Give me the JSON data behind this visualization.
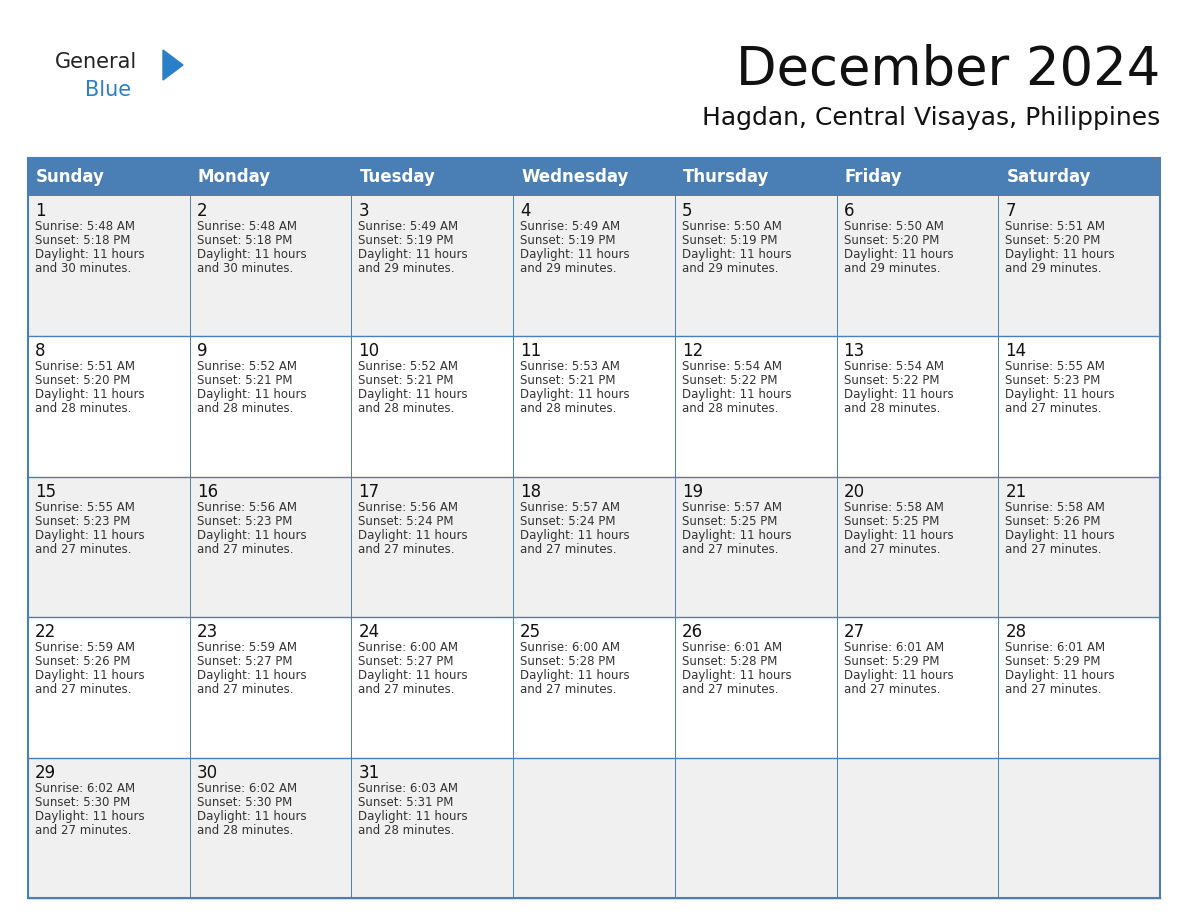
{
  "title": "December 2024",
  "subtitle": "Hagdan, Central Visayas, Philippines",
  "header_bg": "#4a7fb5",
  "header_text": "#ffffff",
  "cell_bg_odd": "#f0f0f0",
  "cell_bg_even": "#ffffff",
  "border_color": "#4a7fb5",
  "day_names": [
    "Sunday",
    "Monday",
    "Tuesday",
    "Wednesday",
    "Thursday",
    "Friday",
    "Saturday"
  ],
  "days": [
    {
      "day": 1,
      "col": 0,
      "row": 0,
      "sunrise": "5:48 AM",
      "sunset": "5:18 PM",
      "daylight": "11 hours and 30 minutes."
    },
    {
      "day": 2,
      "col": 1,
      "row": 0,
      "sunrise": "5:48 AM",
      "sunset": "5:18 PM",
      "daylight": "11 hours and 30 minutes."
    },
    {
      "day": 3,
      "col": 2,
      "row": 0,
      "sunrise": "5:49 AM",
      "sunset": "5:19 PM",
      "daylight": "11 hours and 29 minutes."
    },
    {
      "day": 4,
      "col": 3,
      "row": 0,
      "sunrise": "5:49 AM",
      "sunset": "5:19 PM",
      "daylight": "11 hours and 29 minutes."
    },
    {
      "day": 5,
      "col": 4,
      "row": 0,
      "sunrise": "5:50 AM",
      "sunset": "5:19 PM",
      "daylight": "11 hours and 29 minutes."
    },
    {
      "day": 6,
      "col": 5,
      "row": 0,
      "sunrise": "5:50 AM",
      "sunset": "5:20 PM",
      "daylight": "11 hours and 29 minutes."
    },
    {
      "day": 7,
      "col": 6,
      "row": 0,
      "sunrise": "5:51 AM",
      "sunset": "5:20 PM",
      "daylight": "11 hours and 29 minutes."
    },
    {
      "day": 8,
      "col": 0,
      "row": 1,
      "sunrise": "5:51 AM",
      "sunset": "5:20 PM",
      "daylight": "11 hours and 28 minutes."
    },
    {
      "day": 9,
      "col": 1,
      "row": 1,
      "sunrise": "5:52 AM",
      "sunset": "5:21 PM",
      "daylight": "11 hours and 28 minutes."
    },
    {
      "day": 10,
      "col": 2,
      "row": 1,
      "sunrise": "5:52 AM",
      "sunset": "5:21 PM",
      "daylight": "11 hours and 28 minutes."
    },
    {
      "day": 11,
      "col": 3,
      "row": 1,
      "sunrise": "5:53 AM",
      "sunset": "5:21 PM",
      "daylight": "11 hours and 28 minutes."
    },
    {
      "day": 12,
      "col": 4,
      "row": 1,
      "sunrise": "5:54 AM",
      "sunset": "5:22 PM",
      "daylight": "11 hours and 28 minutes."
    },
    {
      "day": 13,
      "col": 5,
      "row": 1,
      "sunrise": "5:54 AM",
      "sunset": "5:22 PM",
      "daylight": "11 hours and 28 minutes."
    },
    {
      "day": 14,
      "col": 6,
      "row": 1,
      "sunrise": "5:55 AM",
      "sunset": "5:23 PM",
      "daylight": "11 hours and 27 minutes."
    },
    {
      "day": 15,
      "col": 0,
      "row": 2,
      "sunrise": "5:55 AM",
      "sunset": "5:23 PM",
      "daylight": "11 hours and 27 minutes."
    },
    {
      "day": 16,
      "col": 1,
      "row": 2,
      "sunrise": "5:56 AM",
      "sunset": "5:23 PM",
      "daylight": "11 hours and 27 minutes."
    },
    {
      "day": 17,
      "col": 2,
      "row": 2,
      "sunrise": "5:56 AM",
      "sunset": "5:24 PM",
      "daylight": "11 hours and 27 minutes."
    },
    {
      "day": 18,
      "col": 3,
      "row": 2,
      "sunrise": "5:57 AM",
      "sunset": "5:24 PM",
      "daylight": "11 hours and 27 minutes."
    },
    {
      "day": 19,
      "col": 4,
      "row": 2,
      "sunrise": "5:57 AM",
      "sunset": "5:25 PM",
      "daylight": "11 hours and 27 minutes."
    },
    {
      "day": 20,
      "col": 5,
      "row": 2,
      "sunrise": "5:58 AM",
      "sunset": "5:25 PM",
      "daylight": "11 hours and 27 minutes."
    },
    {
      "day": 21,
      "col": 6,
      "row": 2,
      "sunrise": "5:58 AM",
      "sunset": "5:26 PM",
      "daylight": "11 hours and 27 minutes."
    },
    {
      "day": 22,
      "col": 0,
      "row": 3,
      "sunrise": "5:59 AM",
      "sunset": "5:26 PM",
      "daylight": "11 hours and 27 minutes."
    },
    {
      "day": 23,
      "col": 1,
      "row": 3,
      "sunrise": "5:59 AM",
      "sunset": "5:27 PM",
      "daylight": "11 hours and 27 minutes."
    },
    {
      "day": 24,
      "col": 2,
      "row": 3,
      "sunrise": "6:00 AM",
      "sunset": "5:27 PM",
      "daylight": "11 hours and 27 minutes."
    },
    {
      "day": 25,
      "col": 3,
      "row": 3,
      "sunrise": "6:00 AM",
      "sunset": "5:28 PM",
      "daylight": "11 hours and 27 minutes."
    },
    {
      "day": 26,
      "col": 4,
      "row": 3,
      "sunrise": "6:01 AM",
      "sunset": "5:28 PM",
      "daylight": "11 hours and 27 minutes."
    },
    {
      "day": 27,
      "col": 5,
      "row": 3,
      "sunrise": "6:01 AM",
      "sunset": "5:29 PM",
      "daylight": "11 hours and 27 minutes."
    },
    {
      "day": 28,
      "col": 6,
      "row": 3,
      "sunrise": "6:01 AM",
      "sunset": "5:29 PM",
      "daylight": "11 hours and 27 minutes."
    },
    {
      "day": 29,
      "col": 0,
      "row": 4,
      "sunrise": "6:02 AM",
      "sunset": "5:30 PM",
      "daylight": "11 hours and 27 minutes."
    },
    {
      "day": 30,
      "col": 1,
      "row": 4,
      "sunrise": "6:02 AM",
      "sunset": "5:30 PM",
      "daylight": "11 hours and 28 minutes."
    },
    {
      "day": 31,
      "col": 2,
      "row": 4,
      "sunrise": "6:03 AM",
      "sunset": "5:31 PM",
      "daylight": "11 hours and 28 minutes."
    }
  ],
  "num_weeks": 5,
  "logo_general_color": "#222222",
  "logo_blue_color": "#2a7fc9",
  "logo_triangle_color": "#2a7fc9",
  "title_fontsize": 38,
  "subtitle_fontsize": 18,
  "dayname_fontsize": 12,
  "daynum_fontsize": 12,
  "cell_text_fontsize": 8.5
}
